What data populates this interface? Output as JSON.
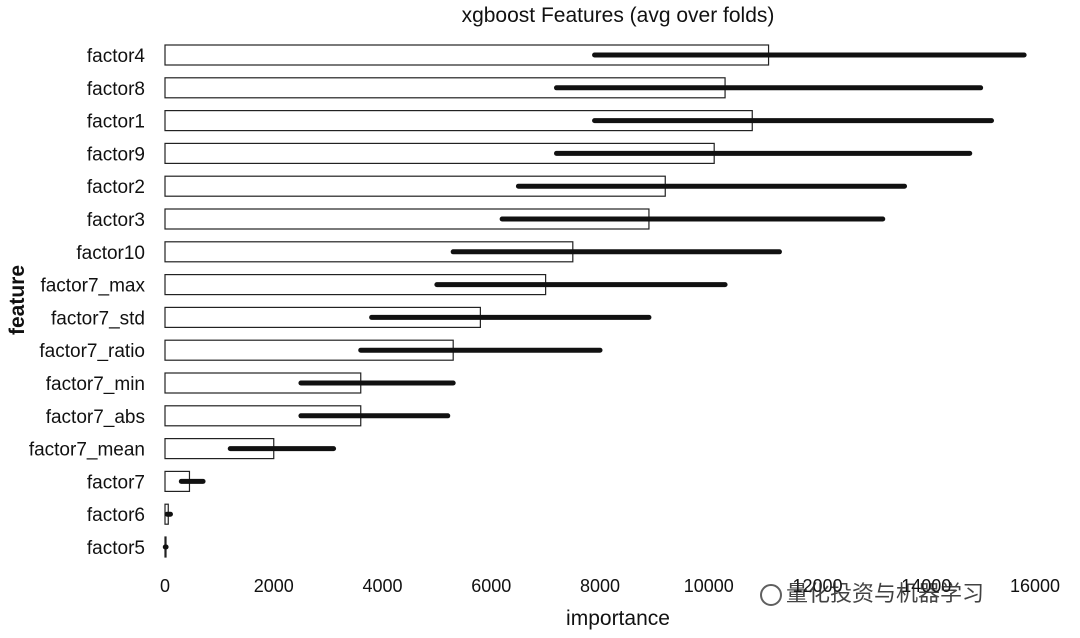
{
  "chart_data": {
    "type": "bar",
    "title": "xgboost Features (avg over folds)",
    "xlabel": "importance",
    "ylabel": "feature",
    "xlim": [
      0,
      16000
    ],
    "xticks": [
      0,
      2000,
      4000,
      6000,
      8000,
      10000,
      12000,
      14000,
      16000
    ],
    "xtick_labels": [
      "0",
      "2000",
      "4000",
      "6000",
      "8000",
      "10000",
      "12000",
      "14000",
      "16000"
    ],
    "orientation": "horizontal",
    "error_bars": true,
    "categories": [
      "factor4",
      "factor8",
      "factor1",
      "factor9",
      "factor2",
      "factor3",
      "factor10",
      "factor7_max",
      "factor7_std",
      "factor7_ratio",
      "factor7_min",
      "factor7_abs",
      "factor7_mean",
      "factor7",
      "factor6",
      "factor5"
    ],
    "values": [
      11100,
      10300,
      10800,
      10100,
      9200,
      8900,
      7500,
      7000,
      5800,
      5300,
      3600,
      3600,
      2000,
      450,
      60,
      10
    ],
    "error_low": [
      7900,
      7200,
      7900,
      7200,
      6500,
      6200,
      5300,
      5000,
      3800,
      3600,
      2500,
      2500,
      1200,
      300,
      40,
      5
    ],
    "error_high": [
      15800,
      15000,
      15200,
      14800,
      13600,
      13200,
      11300,
      10300,
      8900,
      8000,
      5300,
      5200,
      3100,
      700,
      100,
      20
    ],
    "grid": false
  },
  "watermark": {
    "text": "量化投资与机器学习",
    "icon": "wechat-icon"
  }
}
